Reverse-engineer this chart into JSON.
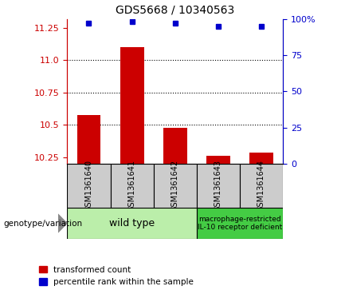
{
  "title": "GDS5668 / 10340563",
  "samples": [
    "GSM1361640",
    "GSM1361641",
    "GSM1361642",
    "GSM1361643",
    "GSM1361644"
  ],
  "red_values": [
    10.575,
    11.1,
    10.48,
    10.265,
    10.285
  ],
  "blue_values": [
    97,
    98,
    97,
    95,
    95
  ],
  "ylim_left": [
    10.2,
    11.32
  ],
  "ylim_right": [
    0,
    100
  ],
  "yticks_left": [
    10.25,
    10.5,
    10.75,
    11.0,
    11.25
  ],
  "yticks_right": [
    0,
    25,
    50,
    75,
    100
  ],
  "ytick_labels_right": [
    "0",
    "25",
    "50",
    "75",
    "100%"
  ],
  "red_color": "#cc0000",
  "blue_color": "#0000cc",
  "bar_bottom": 10.2,
  "grid_lines": [
    11.0,
    10.75,
    10.5
  ],
  "group1_samples": [
    0,
    1,
    2
  ],
  "group2_samples": [
    3,
    4
  ],
  "group1_label": "wild type",
  "group2_label": "macrophage-restricted\nIL-10 receptor deficient",
  "group1_color": "#bbeeaa",
  "group2_color": "#44cc44",
  "genotype_label": "genotype/variation",
  "legend_red": "transformed count",
  "legend_blue": "percentile rank within the sample",
  "sample_box_color": "#cccccc",
  "title_fontsize": 10,
  "tick_fontsize": 8,
  "sample_fontsize": 7,
  "group_fontsize1": 9,
  "group_fontsize2": 6.5
}
